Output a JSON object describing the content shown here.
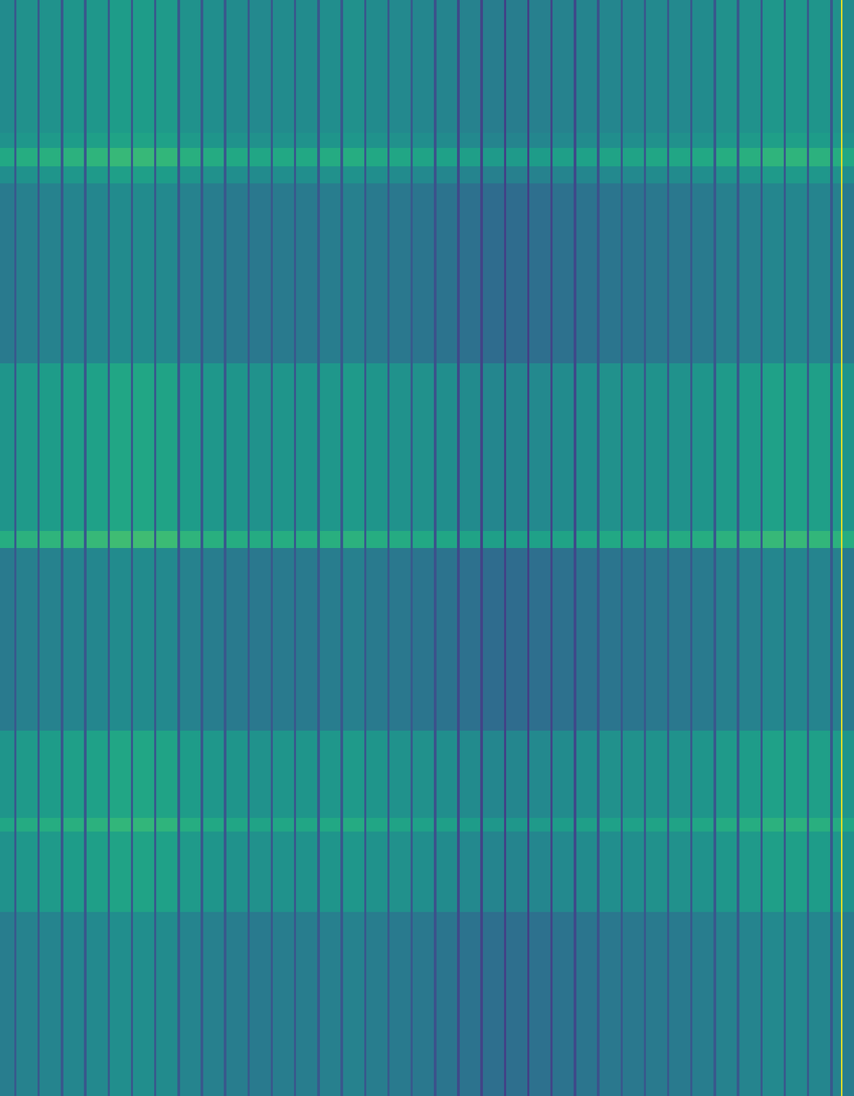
{
  "chart_data": {
    "type": "heatmap",
    "color": "viridis",
    "color_range": [
      0,
      1
    ],
    "tick_labels": false,
    "xlim": [
      0,
      36.63
    ],
    "ylim": [
      0,
      1568
    ],
    "x_edges": [
      0,
      0.61,
      0.71,
      1.61,
      1.71,
      2.61,
      2.71,
      3.61,
      3.71,
      4.61,
      4.71,
      5.61,
      5.71,
      6.61,
      6.71,
      7.61,
      7.71,
      8.61,
      8.71,
      9.61,
      9.71,
      10.61,
      10.71,
      11.61,
      11.71,
      12.61,
      12.71,
      13.61,
      13.71,
      14.61,
      14.71,
      15.61,
      15.71,
      16.61,
      16.71,
      17.61,
      17.71,
      18.61,
      18.71,
      19.61,
      19.71,
      20.61,
      20.71,
      21.61,
      21.71,
      22.61,
      22.71,
      23.61,
      23.71,
      24.61,
      24.71,
      25.61,
      25.71,
      26.61,
      26.71,
      27.61,
      27.71,
      28.61,
      28.71,
      29.61,
      29.71,
      30.61,
      30.71,
      31.61,
      31.71,
      32.61,
      32.71,
      33.61,
      33.71,
      34.61,
      34.71,
      35.61,
      35.71,
      36.06,
      36.12,
      36.63
    ],
    "y_edges": [
      0,
      190,
      212,
      238,
      262,
      520,
      760,
      784,
      1045,
      1170,
      1190,
      1305,
      1568
    ],
    "cells": [
      [
        0.48,
        0.27,
        0.5,
        0.27,
        0.51,
        0.27,
        0.52,
        0.27,
        0.53,
        0.27,
        0.55,
        0.27,
        0.55,
        0.27,
        0.54,
        0.27,
        0.51,
        0.27,
        0.49,
        0.27,
        0.48,
        0.27,
        0.47,
        0.27,
        0.48,
        0.27,
        0.48,
        0.27,
        0.49,
        0.27,
        0.5,
        0.27,
        0.48,
        0.27,
        0.47,
        0.27,
        0.46,
        0.25,
        0.45,
        0.22,
        0.44,
        0.2,
        0.42,
        0.19,
        0.42,
        0.19,
        0.43,
        0.2,
        0.44,
        0.22,
        0.45,
        0.25,
        0.46,
        0.27,
        0.46,
        0.27,
        0.47,
        0.27,
        0.47,
        0.27,
        0.48,
        0.27,
        0.5,
        0.27,
        0.51,
        0.27,
        0.53,
        0.27,
        0.53,
        0.27,
        0.52,
        0.27,
        0.5,
        0.98,
        0.48
      ],
      [
        0.51,
        0.27,
        0.53,
        0.27,
        0.54,
        0.27,
        0.55,
        0.27,
        0.56,
        0.27,
        0.58,
        0.27,
        0.58,
        0.27,
        0.57,
        0.27,
        0.54,
        0.27,
        0.52,
        0.27,
        0.51,
        0.27,
        0.5,
        0.27,
        0.51,
        0.27,
        0.51,
        0.27,
        0.52,
        0.27,
        0.53,
        0.27,
        0.51,
        0.27,
        0.5,
        0.27,
        0.49,
        0.25,
        0.48,
        0.22,
        0.47,
        0.2,
        0.45,
        0.19,
        0.45,
        0.19,
        0.46,
        0.2,
        0.47,
        0.22,
        0.48,
        0.25,
        0.49,
        0.27,
        0.49,
        0.27,
        0.5,
        0.27,
        0.5,
        0.27,
        0.51,
        0.27,
        0.53,
        0.27,
        0.54,
        0.27,
        0.56,
        0.27,
        0.56,
        0.27,
        0.55,
        0.27,
        0.53,
        0.98,
        0.51
      ],
      [
        0.6,
        0.27,
        0.62,
        0.27,
        0.63,
        0.27,
        0.64,
        0.27,
        0.65,
        0.27,
        0.67,
        0.27,
        0.67,
        0.27,
        0.66,
        0.27,
        0.63,
        0.27,
        0.61,
        0.27,
        0.6,
        0.27,
        0.59,
        0.27,
        0.6,
        0.27,
        0.6,
        0.27,
        0.61,
        0.27,
        0.62,
        0.27,
        0.6,
        0.27,
        0.59,
        0.27,
        0.58,
        0.25,
        0.57,
        0.22,
        0.56,
        0.2,
        0.54,
        0.19,
        0.54,
        0.19,
        0.55,
        0.2,
        0.56,
        0.22,
        0.57,
        0.25,
        0.58,
        0.27,
        0.58,
        0.27,
        0.59,
        0.27,
        0.59,
        0.27,
        0.6,
        0.27,
        0.62,
        0.27,
        0.63,
        0.27,
        0.65,
        0.27,
        0.65,
        0.27,
        0.64,
        0.27,
        0.62,
        0.98,
        0.6
      ],
      [
        0.49,
        0.27,
        0.51,
        0.27,
        0.52,
        0.27,
        0.53,
        0.27,
        0.54,
        0.27,
        0.56,
        0.27,
        0.56,
        0.27,
        0.55,
        0.27,
        0.52,
        0.27,
        0.5,
        0.27,
        0.49,
        0.27,
        0.48,
        0.27,
        0.49,
        0.27,
        0.49,
        0.27,
        0.5,
        0.27,
        0.51,
        0.27,
        0.49,
        0.27,
        0.48,
        0.27,
        0.47,
        0.25,
        0.46,
        0.22,
        0.45,
        0.2,
        0.43,
        0.19,
        0.43,
        0.19,
        0.44,
        0.2,
        0.45,
        0.22,
        0.46,
        0.25,
        0.47,
        0.27,
        0.47,
        0.27,
        0.48,
        0.27,
        0.48,
        0.27,
        0.49,
        0.27,
        0.51,
        0.27,
        0.52,
        0.27,
        0.54,
        0.27,
        0.54,
        0.27,
        0.53,
        0.27,
        0.51,
        0.98,
        0.49
      ],
      [
        0.41,
        0.27,
        0.43,
        0.27,
        0.44,
        0.27,
        0.45,
        0.27,
        0.46,
        0.27,
        0.48,
        0.27,
        0.48,
        0.27,
        0.47,
        0.27,
        0.44,
        0.27,
        0.42,
        0.27,
        0.41,
        0.27,
        0.4,
        0.27,
        0.41,
        0.27,
        0.41,
        0.27,
        0.42,
        0.27,
        0.43,
        0.27,
        0.41,
        0.27,
        0.4,
        0.27,
        0.39,
        0.25,
        0.38,
        0.22,
        0.37,
        0.2,
        0.35,
        0.19,
        0.35,
        0.19,
        0.36,
        0.2,
        0.37,
        0.22,
        0.38,
        0.25,
        0.39,
        0.27,
        0.39,
        0.27,
        0.4,
        0.27,
        0.4,
        0.27,
        0.41,
        0.27,
        0.43,
        0.27,
        0.44,
        0.27,
        0.46,
        0.27,
        0.46,
        0.27,
        0.45,
        0.27,
        0.43,
        0.98,
        0.41
      ],
      [
        0.52,
        0.27,
        0.54,
        0.27,
        0.55,
        0.27,
        0.56,
        0.27,
        0.57,
        0.27,
        0.59,
        0.27,
        0.59,
        0.27,
        0.58,
        0.27,
        0.55,
        0.27,
        0.53,
        0.27,
        0.52,
        0.27,
        0.51,
        0.27,
        0.52,
        0.27,
        0.52,
        0.27,
        0.53,
        0.27,
        0.54,
        0.27,
        0.52,
        0.27,
        0.51,
        0.27,
        0.5,
        0.25,
        0.49,
        0.22,
        0.48,
        0.2,
        0.46,
        0.19,
        0.46,
        0.19,
        0.47,
        0.2,
        0.48,
        0.22,
        0.49,
        0.25,
        0.5,
        0.27,
        0.5,
        0.27,
        0.51,
        0.27,
        0.51,
        0.27,
        0.52,
        0.27,
        0.54,
        0.27,
        0.55,
        0.27,
        0.57,
        0.27,
        0.57,
        0.27,
        0.56,
        0.27,
        0.54,
        0.98,
        0.52
      ],
      [
        0.62,
        0.27,
        0.64,
        0.27,
        0.65,
        0.27,
        0.66,
        0.27,
        0.67,
        0.27,
        0.69,
        0.27,
        0.69,
        0.27,
        0.68,
        0.27,
        0.65,
        0.27,
        0.63,
        0.27,
        0.62,
        0.27,
        0.61,
        0.27,
        0.62,
        0.27,
        0.62,
        0.27,
        0.63,
        0.27,
        0.64,
        0.27,
        0.62,
        0.27,
        0.61,
        0.27,
        0.6,
        0.25,
        0.59,
        0.22,
        0.58,
        0.2,
        0.56,
        0.19,
        0.56,
        0.19,
        0.57,
        0.2,
        0.58,
        0.22,
        0.59,
        0.25,
        0.6,
        0.27,
        0.6,
        0.27,
        0.61,
        0.27,
        0.61,
        0.27,
        0.62,
        0.27,
        0.64,
        0.27,
        0.65,
        0.27,
        0.67,
        0.27,
        0.67,
        0.27,
        0.66,
        0.27,
        0.64,
        0.98,
        0.62
      ],
      [
        0.41,
        0.27,
        0.43,
        0.27,
        0.44,
        0.27,
        0.45,
        0.27,
        0.46,
        0.27,
        0.48,
        0.27,
        0.48,
        0.27,
        0.47,
        0.27,
        0.44,
        0.27,
        0.42,
        0.27,
        0.41,
        0.27,
        0.4,
        0.27,
        0.41,
        0.27,
        0.41,
        0.27,
        0.42,
        0.27,
        0.43,
        0.27,
        0.41,
        0.27,
        0.4,
        0.27,
        0.39,
        0.25,
        0.38,
        0.22,
        0.37,
        0.2,
        0.35,
        0.19,
        0.35,
        0.19,
        0.36,
        0.2,
        0.37,
        0.22,
        0.38,
        0.25,
        0.39,
        0.27,
        0.39,
        0.27,
        0.4,
        0.27,
        0.4,
        0.27,
        0.41,
        0.27,
        0.43,
        0.27,
        0.44,
        0.27,
        0.46,
        0.27,
        0.46,
        0.27,
        0.45,
        0.27,
        0.43,
        0.98,
        0.41
      ],
      [
        0.52,
        0.27,
        0.54,
        0.27,
        0.55,
        0.27,
        0.56,
        0.27,
        0.57,
        0.27,
        0.59,
        0.27,
        0.59,
        0.27,
        0.58,
        0.27,
        0.55,
        0.27,
        0.53,
        0.27,
        0.52,
        0.27,
        0.51,
        0.27,
        0.52,
        0.27,
        0.52,
        0.27,
        0.53,
        0.27,
        0.54,
        0.27,
        0.52,
        0.27,
        0.51,
        0.27,
        0.5,
        0.25,
        0.49,
        0.22,
        0.48,
        0.2,
        0.46,
        0.19,
        0.46,
        0.19,
        0.47,
        0.2,
        0.48,
        0.22,
        0.49,
        0.25,
        0.5,
        0.27,
        0.5,
        0.27,
        0.51,
        0.27,
        0.51,
        0.27,
        0.52,
        0.27,
        0.54,
        0.27,
        0.55,
        0.27,
        0.57,
        0.27,
        0.57,
        0.27,
        0.56,
        0.27,
        0.54,
        0.98,
        0.52
      ],
      [
        0.59,
        0.27,
        0.61,
        0.27,
        0.62,
        0.27,
        0.63,
        0.27,
        0.64,
        0.27,
        0.66,
        0.27,
        0.66,
        0.27,
        0.65,
        0.27,
        0.62,
        0.27,
        0.6,
        0.27,
        0.59,
        0.27,
        0.58,
        0.27,
        0.59,
        0.27,
        0.59,
        0.27,
        0.6,
        0.27,
        0.61,
        0.27,
        0.59,
        0.27,
        0.58,
        0.27,
        0.57,
        0.25,
        0.56,
        0.22,
        0.55,
        0.2,
        0.53,
        0.19,
        0.53,
        0.19,
        0.54,
        0.2,
        0.55,
        0.22,
        0.56,
        0.25,
        0.57,
        0.27,
        0.57,
        0.27,
        0.58,
        0.27,
        0.58,
        0.27,
        0.59,
        0.27,
        0.61,
        0.27,
        0.62,
        0.27,
        0.64,
        0.27,
        0.64,
        0.27,
        0.63,
        0.27,
        0.61,
        0.98,
        0.59
      ],
      [
        0.51,
        0.27,
        0.53,
        0.27,
        0.54,
        0.27,
        0.55,
        0.27,
        0.56,
        0.27,
        0.58,
        0.27,
        0.58,
        0.27,
        0.57,
        0.27,
        0.54,
        0.27,
        0.52,
        0.27,
        0.51,
        0.27,
        0.5,
        0.27,
        0.51,
        0.27,
        0.51,
        0.27,
        0.52,
        0.27,
        0.53,
        0.27,
        0.51,
        0.27,
        0.5,
        0.27,
        0.49,
        0.25,
        0.48,
        0.22,
        0.47,
        0.2,
        0.45,
        0.19,
        0.45,
        0.19,
        0.46,
        0.2,
        0.47,
        0.22,
        0.48,
        0.25,
        0.49,
        0.27,
        0.49,
        0.27,
        0.5,
        0.27,
        0.5,
        0.27,
        0.51,
        0.27,
        0.53,
        0.27,
        0.54,
        0.27,
        0.56,
        0.27,
        0.56,
        0.27,
        0.55,
        0.27,
        0.53,
        0.98,
        0.51
      ],
      [
        0.42,
        0.27,
        0.44,
        0.27,
        0.45,
        0.27,
        0.46,
        0.27,
        0.47,
        0.27,
        0.49,
        0.27,
        0.49,
        0.27,
        0.48,
        0.27,
        0.45,
        0.27,
        0.43,
        0.27,
        0.42,
        0.27,
        0.41,
        0.27,
        0.42,
        0.27,
        0.42,
        0.27,
        0.43,
        0.27,
        0.44,
        0.27,
        0.42,
        0.27,
        0.41,
        0.27,
        0.4,
        0.25,
        0.39,
        0.22,
        0.38,
        0.2,
        0.36,
        0.19,
        0.36,
        0.19,
        0.37,
        0.2,
        0.38,
        0.22,
        0.39,
        0.25,
        0.4,
        0.27,
        0.4,
        0.27,
        0.41,
        0.27,
        0.41,
        0.27,
        0.42,
        0.27,
        0.44,
        0.27,
        0.45,
        0.27,
        0.47,
        0.27,
        0.47,
        0.27,
        0.46,
        0.27,
        0.44,
        0.98,
        0.42
      ]
    ]
  }
}
